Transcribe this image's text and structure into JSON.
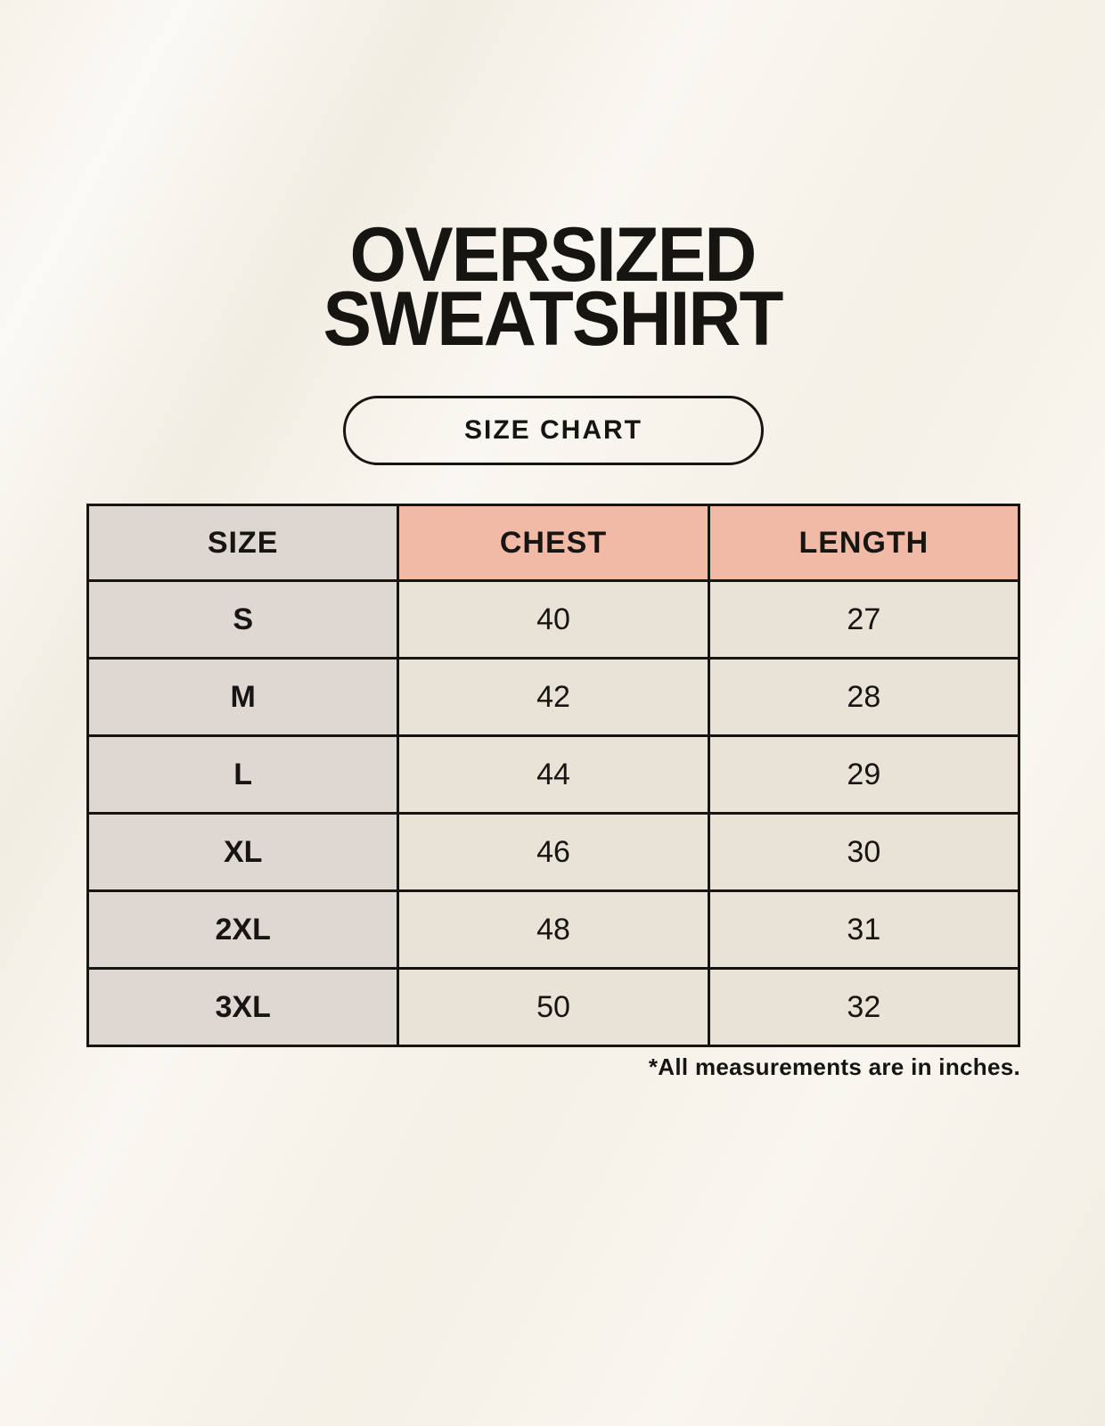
{
  "title": {
    "line1": "OVERSIZED",
    "line2": "SWEATSHIRT"
  },
  "button": {
    "label": "SIZE CHART"
  },
  "table": {
    "headers": [
      "SIZE",
      "CHEST",
      "LENGTH"
    ],
    "rows": [
      {
        "size": "S",
        "chest": "40",
        "length": "27"
      },
      {
        "size": "M",
        "chest": "42",
        "length": "28"
      },
      {
        "size": "L",
        "chest": "44",
        "length": "29"
      },
      {
        "size": "XL",
        "chest": "46",
        "length": "30"
      },
      {
        "size": "2XL",
        "chest": "48",
        "length": "31"
      },
      {
        "size": "3XL",
        "chest": "50",
        "length": "32"
      }
    ],
    "footnote": "*All measurements are in inches."
  },
  "colors": {
    "background": "#f6f2e9",
    "header_size_bg": "#ddd6d1",
    "header_accent_bg": "#f0baa7",
    "row_label_bg": "#ded7d2",
    "row_value_bg": "#e9e2d6",
    "border": "#171512",
    "text": "#171512"
  }
}
